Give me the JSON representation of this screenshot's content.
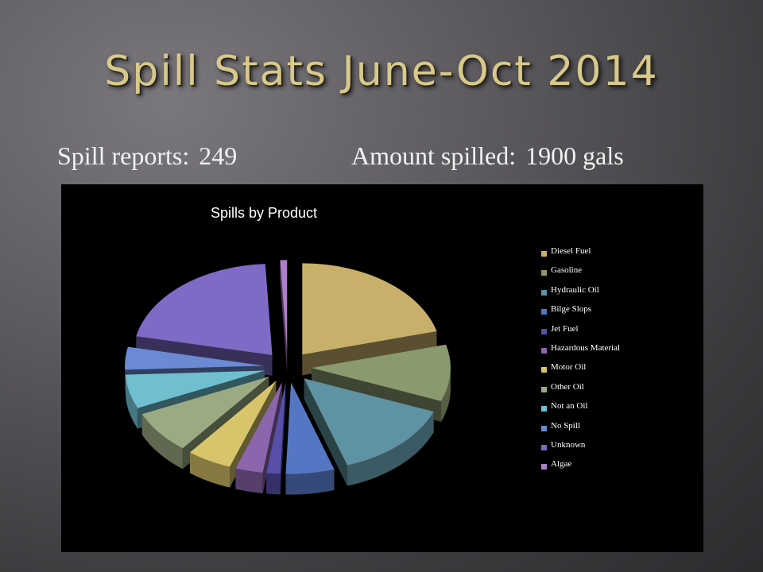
{
  "slide": {
    "title": "Spill Stats June-Oct 2014",
    "reports_label": "Spill reports:",
    "reports_value": "249",
    "amount_label": "Amount spilled:",
    "amount_value": "1900 gals"
  },
  "chart_data": {
    "type": "pie",
    "title": "Spills by Product",
    "legend_position": "right",
    "exploded": true,
    "three_d": true,
    "categories": [
      "Diesel Fuel",
      "Gasoline",
      "Hydraulic Oil",
      "Bilge Slops",
      "Jet Fuel",
      "Hazardous Material",
      "Motor Oil",
      "Other Oil",
      "Not an Oil",
      "No Spill",
      "Unknown",
      "Algae"
    ],
    "values": [
      52,
      25,
      35,
      14,
      4,
      8,
      13,
      19,
      15,
      10,
      52,
      2
    ],
    "colors": [
      "#c9b06a",
      "#8a9a6e",
      "#5f92a2",
      "#5577c3",
      "#574fa8",
      "#8b66ac",
      "#d8c56b",
      "#9aaa82",
      "#70bfd0",
      "#6a8ad4",
      "#7f6ac6",
      "#ad7fc8"
    ]
  }
}
